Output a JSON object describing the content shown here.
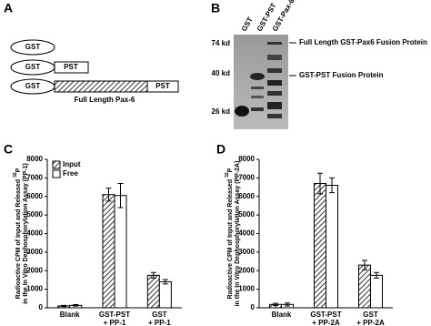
{
  "panel_a": {
    "label": "A",
    "rows": [
      [
        "GST"
      ],
      [
        "GST",
        "PST"
      ],
      [
        "GST",
        "PST"
      ]
    ],
    "hatched_label": "Full Length Pax-6"
  },
  "panel_b": {
    "label": "B",
    "lanes": [
      "GST",
      "GST-PST",
      "GST-Pax-6"
    ],
    "markers": [
      "74 kd",
      "40 kd",
      "26 kd"
    ],
    "annotations": [
      "Full Length GST-Pax6 Fusion Protein",
      "GST-PST Fusion Protein"
    ]
  },
  "chart_data": [
    {
      "type": "bar",
      "label": "C",
      "ylabel": [
        "Radioactive CPM of Input and Released ",
        "32",
        "P"
      ],
      "ylabel2": "in the In Vitro Dephosphorylation Assay (PP-1)",
      "categories": [
        [
          "Blank"
        ],
        [
          "GST-PST",
          "+ PP-1"
        ],
        [
          "GST",
          "+ PP-1"
        ]
      ],
      "series": [
        {
          "name": "Input",
          "color": "#666666",
          "hatch": true,
          "values": [
            100,
            6100,
            1750
          ],
          "errors": [
            30,
            350,
            150
          ]
        },
        {
          "name": "Free",
          "color": "#ffffff",
          "hatch": false,
          "values": [
            130,
            6050,
            1400
          ],
          "errors": [
            40,
            650,
            120
          ]
        }
      ],
      "ylim": [
        0,
        8000
      ],
      "yticks": [
        0,
        1000,
        2000,
        3000,
        4000,
        5000,
        6000,
        7000,
        8000
      ],
      "legend": true
    },
    {
      "type": "bar",
      "label": "D",
      "ylabel": [
        "Radioactive CPM of Input and Released ",
        "32",
        "P"
      ],
      "ylabel2": "in the In Vitro Dephosphorylation Assay (PP-2A)",
      "categories": [
        [
          "Blank"
        ],
        [
          "GST-PST",
          "+ PP-2A"
        ],
        [
          "GST",
          "+ PP-2A"
        ]
      ],
      "series": [
        {
          "name": "Input",
          "color": "#666666",
          "hatch": true,
          "values": [
            180,
            6700,
            2300
          ],
          "errors": [
            60,
            550,
            250
          ]
        },
        {
          "name": "Free",
          "color": "#ffffff",
          "hatch": false,
          "values": [
            180,
            6600,
            1750
          ],
          "errors": [
            80,
            400,
            150
          ]
        }
      ],
      "ylim": [
        0,
        8000
      ],
      "yticks": [
        0,
        1000,
        2000,
        3000,
        4000,
        5000,
        6000,
        7000,
        8000
      ],
      "legend": false
    }
  ]
}
